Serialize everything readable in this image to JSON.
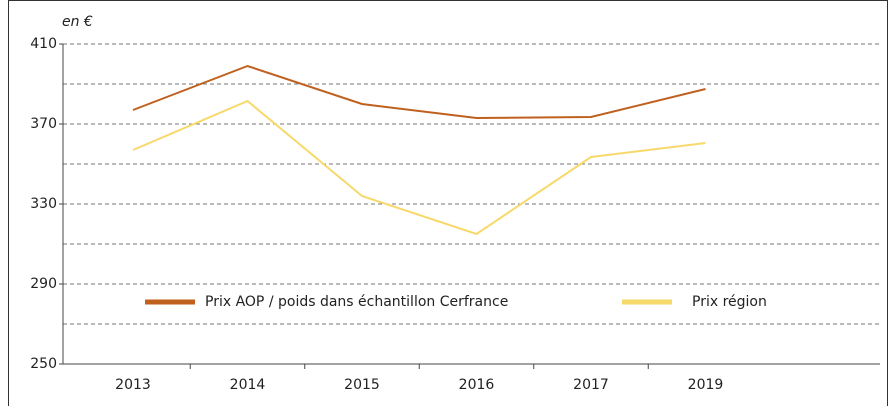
{
  "chart_data": {
    "type": "line",
    "y_label": "en €",
    "categories": [
      "2013",
      "2014",
      "2015",
      "2016",
      "2017",
      "2019"
    ],
    "series": [
      {
        "name": "Prix AOP / poids dans échantillon Cerfrance",
        "color": "#c0601e",
        "values": [
          377,
          399,
          380,
          373,
          373.5,
          387.5
        ]
      },
      {
        "name": "Prix région",
        "color": "#f7d96b",
        "values": [
          357,
          381.5,
          334,
          315,
          353.5,
          360.5
        ]
      }
    ],
    "ylim": [
      250,
      410
    ],
    "yticks": [
      250,
      290,
      330,
      370,
      410
    ],
    "minor_yticks": [
      270,
      310,
      350,
      390
    ],
    "grid": true,
    "legend": "inside-bottom"
  }
}
